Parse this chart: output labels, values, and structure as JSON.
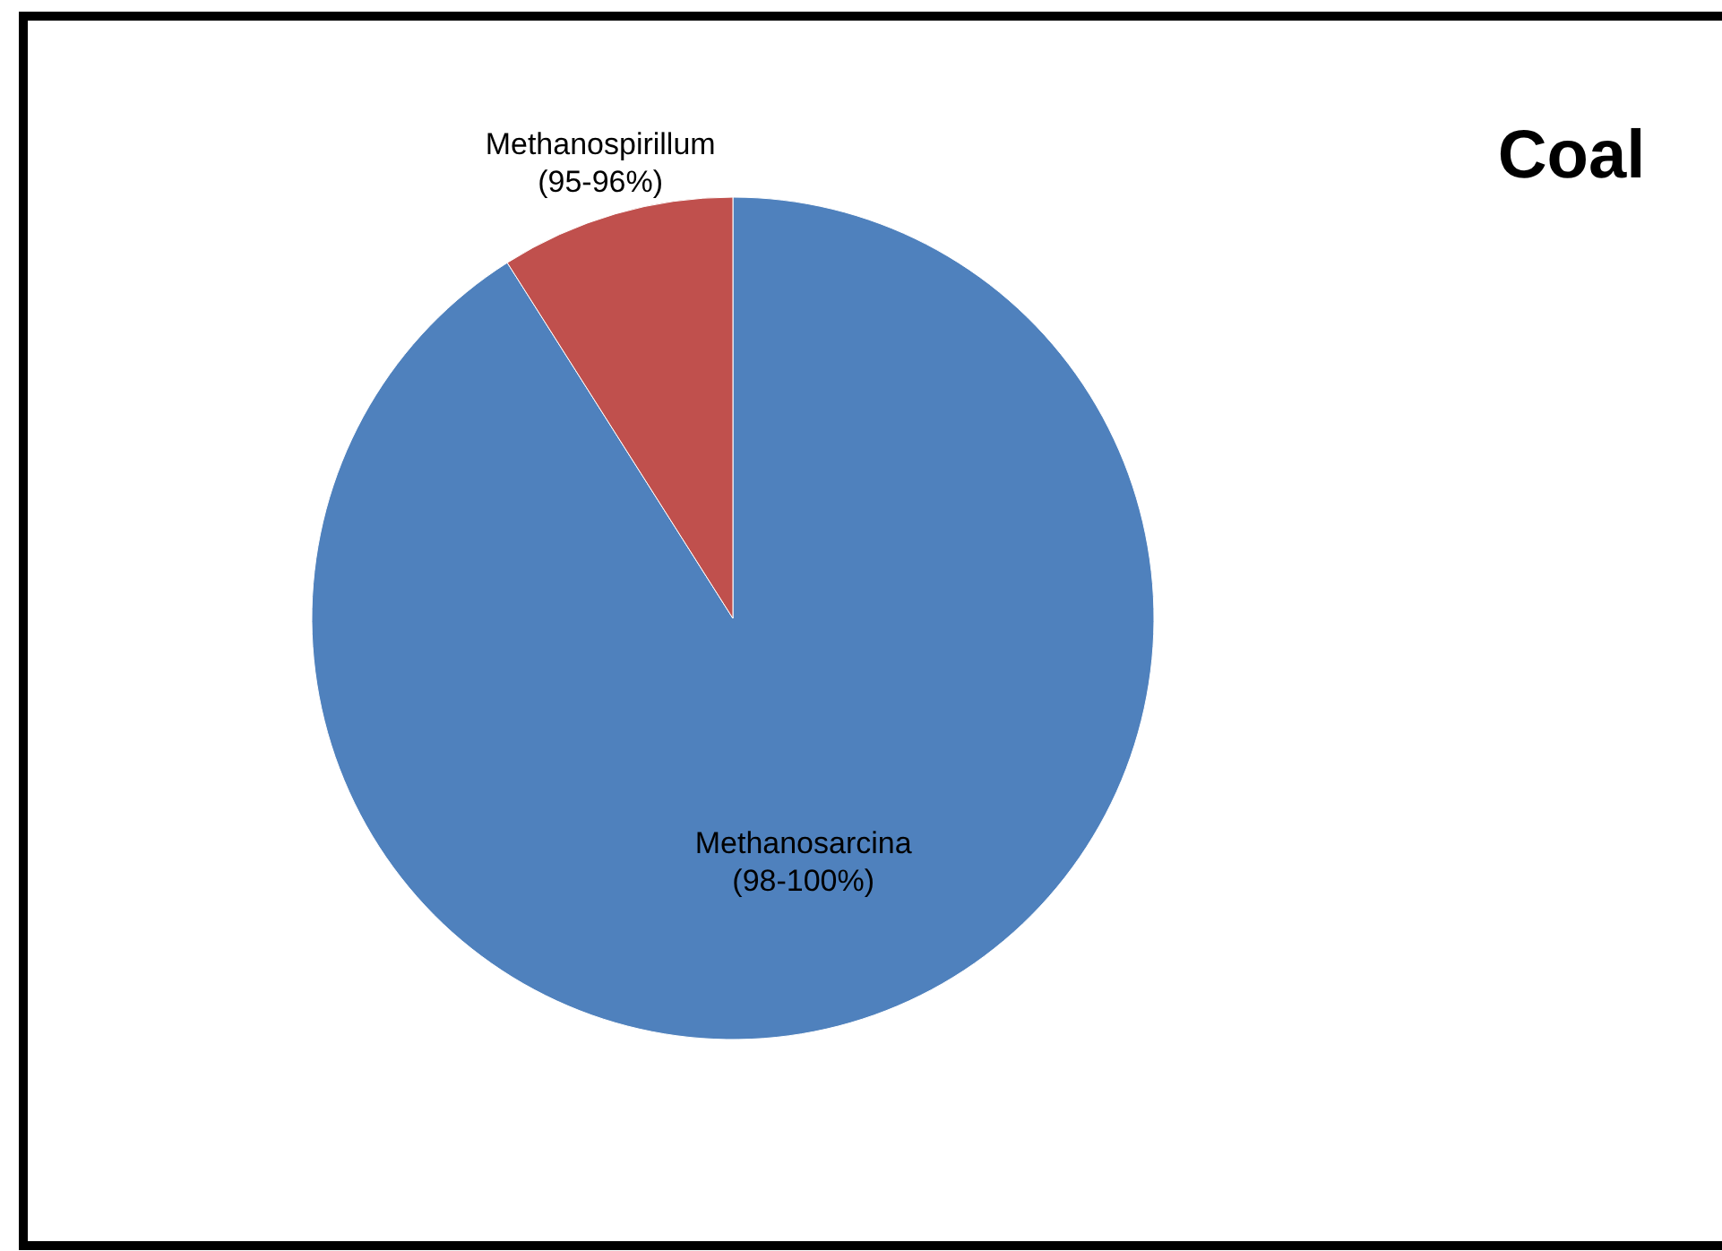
{
  "chart_data": {
    "type": "pie",
    "title": "Coal",
    "categories": [
      "Methanosarcina (98-100%)",
      "Methanospirillum (95-96%)"
    ],
    "values": [
      91,
      9
    ],
    "colors": [
      "#4f81bd",
      "#c0504d"
    ]
  }
}
